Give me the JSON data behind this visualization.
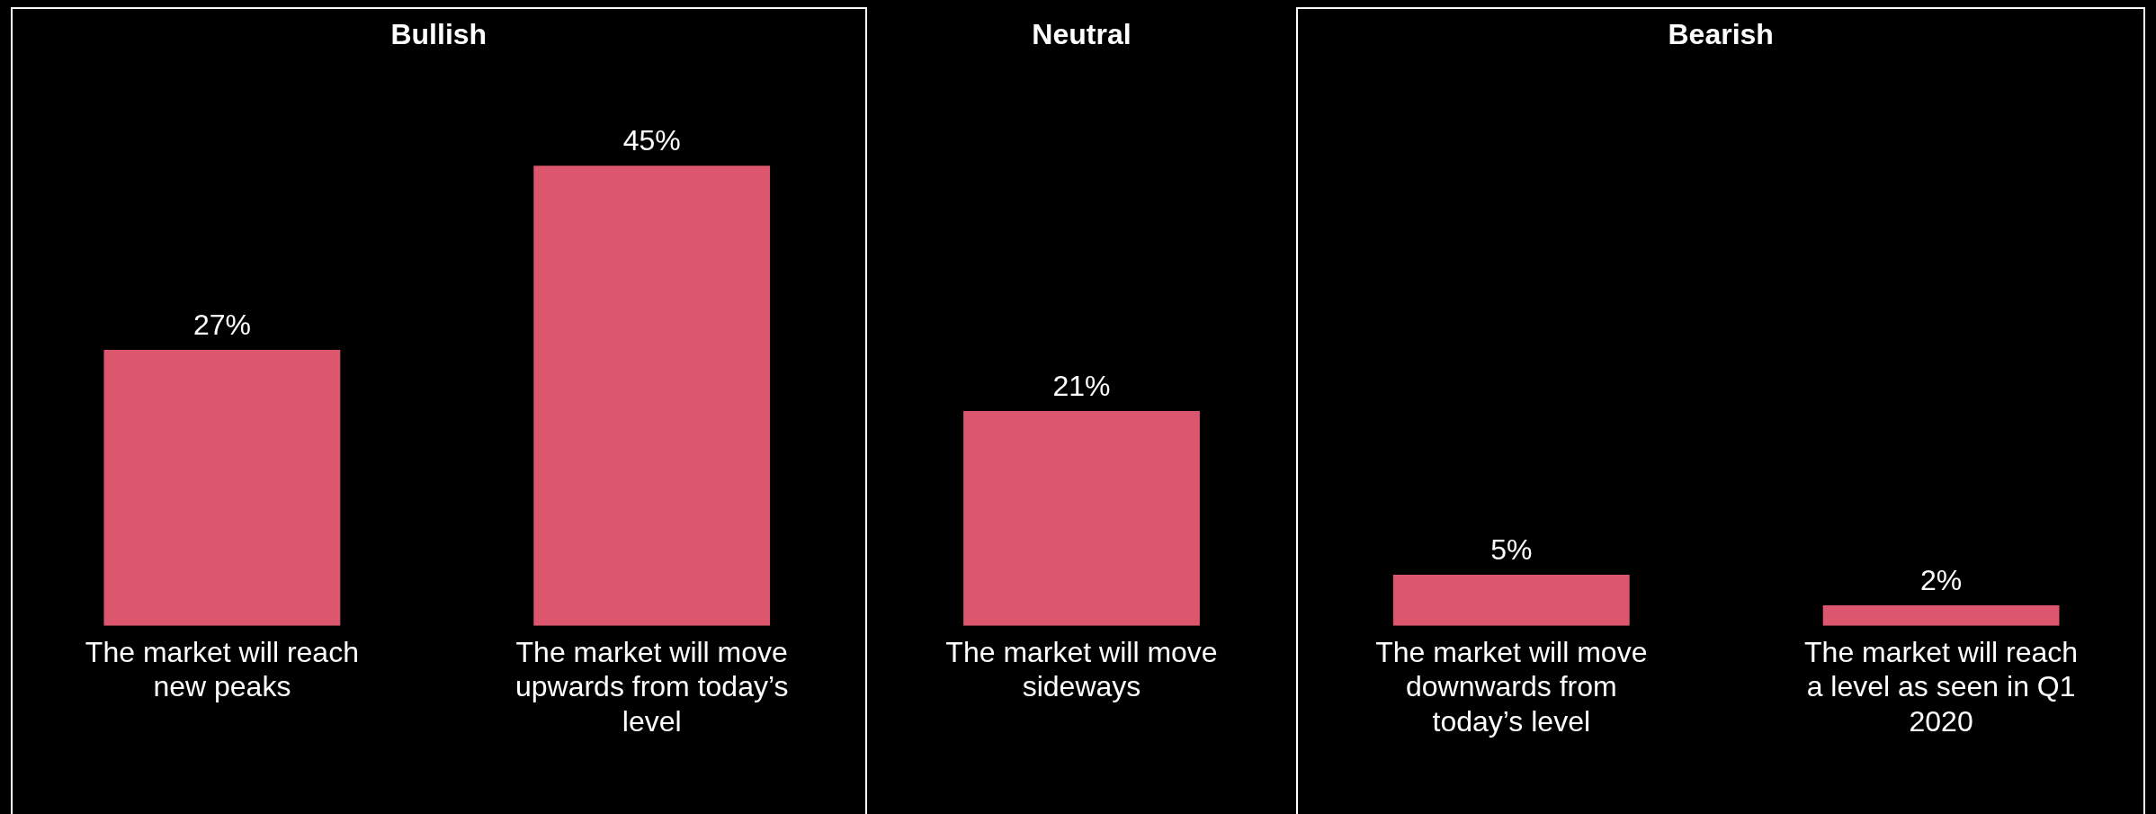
{
  "chart_data": {
    "type": "bar",
    "categories": [
      "The market will reach new peaks",
      "The market will move upwards from today’s level",
      "The market will move sideways",
      "The market will move downwards from today’s level",
      "The market will reach a level as seen in Q1 2020"
    ],
    "values": [
      27,
      45,
      21,
      5,
      2
    ],
    "value_labels": [
      "27%",
      "45%",
      "21%",
      "5%",
      "2%"
    ],
    "color": "#dc566e",
    "annotations": [
      "Bullish",
      "Neutral",
      "Bearish"
    ],
    "legend": false
  }
}
